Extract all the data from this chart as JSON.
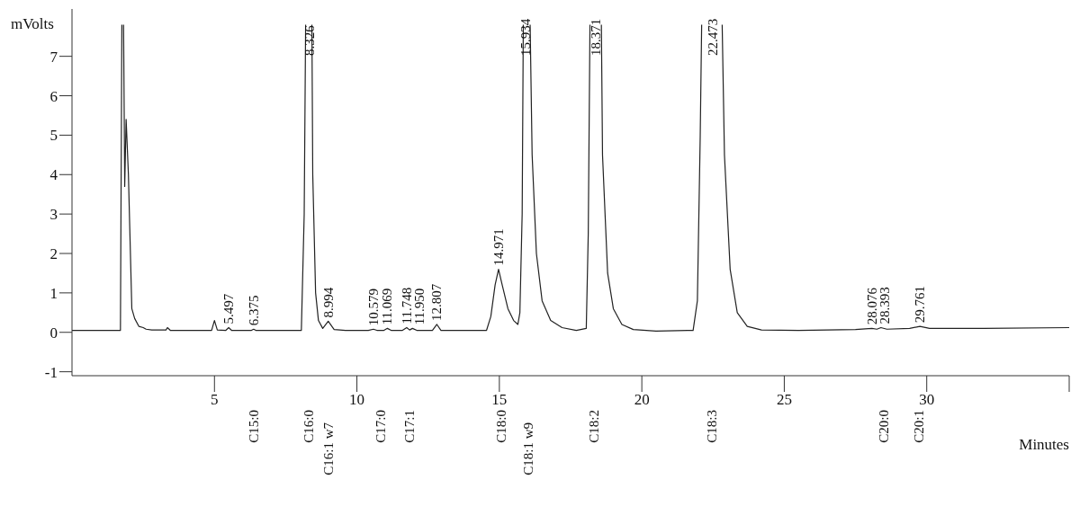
{
  "chart_data": {
    "type": "line",
    "ylabel": "mVolts",
    "xlabel": "Minutes",
    "xlim": [
      0,
      35
    ],
    "xticks": [
      5,
      10,
      15,
      20,
      25,
      30,
      {
        "value": 35,
        "label": null
      }
    ],
    "ylim": [
      -1.1,
      8.2
    ],
    "yticks": [
      -1,
      0,
      1,
      2,
      3,
      4,
      5,
      6,
      7
    ],
    "grid": false,
    "legend": false,
    "marker": "none",
    "line_style": "solid",
    "series": [
      {
        "color": "#222222",
        "x": [
          0,
          1.0,
          1.7,
          1.75,
          1.77,
          1.81,
          1.85,
          1.9,
          1.98,
          2.1,
          2.2,
          2.35,
          2.5,
          2.6,
          2.8,
          3.3,
          3.35,
          3.45,
          4.0,
          4.9,
          5.0,
          5.1,
          5.4,
          5.5,
          5.6,
          6.3,
          6.375,
          6.45,
          7.0,
          8.05,
          8.15,
          8.2,
          8.3,
          8.42,
          8.45,
          8.55,
          8.65,
          8.8,
          8.994,
          9.2,
          9.6,
          10.4,
          10.579,
          10.7,
          10.95,
          11.069,
          11.2,
          11.6,
          11.748,
          11.85,
          11.95,
          12.1,
          12.65,
          12.807,
          12.95,
          13.5,
          14.55,
          14.7,
          14.85,
          14.971,
          15.1,
          15.3,
          15.5,
          15.65,
          15.72,
          15.8,
          15.84,
          15.95,
          16.08,
          16.15,
          16.3,
          16.5,
          16.8,
          17.2,
          17.7,
          18.05,
          18.12,
          18.18,
          18.4,
          18.58,
          18.62,
          18.8,
          19.0,
          19.3,
          19.7,
          20.5,
          21.8,
          21.95,
          22.05,
          22.1,
          22.45,
          22.82,
          22.9,
          23.1,
          23.35,
          23.7,
          24.2,
          25.5,
          27.5,
          28.076,
          28.25,
          28.393,
          28.6,
          29.4,
          29.761,
          30.1,
          32.0,
          35.0
        ],
        "values": [
          0.05,
          0.05,
          0.05,
          7.8,
          null,
          7.8,
          3.7,
          5.4,
          4.0,
          0.6,
          0.35,
          0.15,
          0.12,
          0.08,
          0.06,
          0.06,
          0.12,
          0.05,
          0.05,
          0.05,
          0.3,
          0.06,
          0.05,
          0.12,
          0.05,
          0.05,
          0.08,
          0.05,
          0.05,
          0.05,
          3.0,
          7.8,
          null,
          7.8,
          4.0,
          1.0,
          0.3,
          0.1,
          0.28,
          0.07,
          0.05,
          0.05,
          0.08,
          0.05,
          0.05,
          0.1,
          0.05,
          0.05,
          0.12,
          0.06,
          0.1,
          0.05,
          0.05,
          0.2,
          0.05,
          0.05,
          0.05,
          0.4,
          1.2,
          1.6,
          1.2,
          0.6,
          0.3,
          0.2,
          0.5,
          3.0,
          7.8,
          null,
          7.8,
          4.5,
          2.0,
          0.8,
          0.3,
          0.12,
          0.05,
          0.1,
          2.5,
          7.8,
          null,
          7.8,
          4.5,
          1.5,
          0.6,
          0.2,
          0.07,
          0.03,
          0.05,
          0.8,
          5.0,
          7.8,
          null,
          7.8,
          4.5,
          1.6,
          0.5,
          0.15,
          0.06,
          0.05,
          0.07,
          0.1,
          0.08,
          0.12,
          0.08,
          0.1,
          0.15,
          0.1,
          0.1,
          0.12
        ]
      }
    ],
    "annotations": [
      {
        "text": "5.497",
        "x": 5.497,
        "y": 0.12
      },
      {
        "text": "6.375",
        "x": 6.375,
        "y": 0.08
      },
      "8.326",
      {
        "text": "8.994",
        "x": 8.994,
        "y": 0.28
      },
      {
        "text": "10.579",
        "x": 10.579,
        "y": 0.08
      },
      {
        "text": "11.069",
        "x": 11.069,
        "y": 0.1
      },
      {
        "text": "11.748",
        "x": 11.748,
        "y": 0.12
      },
      {
        "text": "11.950",
        "x": 11.95,
        "y": 0.1
      },
      {
        "text": "12.807",
        "x": 12.807,
        "y": 0.2
      },
      {
        "text": "14.971",
        "x": 14.971,
        "y": 1.6
      },
      "15.934",
      "18.371",
      "22.473",
      {
        "text": "28.076",
        "x": 28.076,
        "y": 0.1
      },
      {
        "text": "28.393",
        "x": 28.393,
        "y": 0.12
      },
      {
        "text": "29.761",
        "x": 29.761,
        "y": 0.15
      },
      "C15:0",
      "C16:0",
      "C16:1 w7",
      "C17:0",
      "C17:1",
      "C18:0",
      "C18:1 w9",
      "C18:2",
      "C18:3",
      "C20:0",
      "C20:1"
    ]
  }
}
